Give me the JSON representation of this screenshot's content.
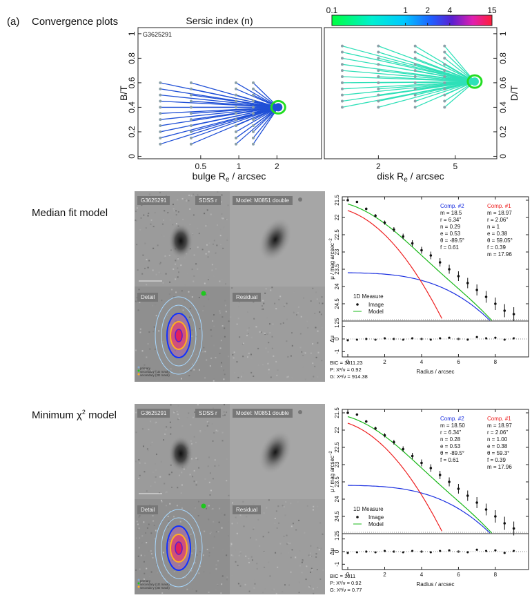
{
  "figure": {
    "panel_letter": "(a)",
    "conv_label": "Convergence plots",
    "median_label": "Median fit model",
    "minchi_label_pre": "Minimum χ",
    "minchi_label_sup": "2",
    "minchi_label_post": " model"
  },
  "colorbar": {
    "title": "Sersic index (n)",
    "ticks": [
      "0.1",
      "1",
      "2",
      "4",
      "15"
    ],
    "tick_values": [
      0.1,
      1,
      2,
      4,
      15
    ]
  },
  "chart_data": [
    {
      "id": "bulge-convergence",
      "type": "line",
      "object": "G3625291",
      "xlabel": "bulge R",
      "xlabel_sub": "e",
      "xlabel_post": " / arcsec",
      "ylabel": "B/T",
      "xscale": "log",
      "xlim": [
        0.16,
        4.5
      ],
      "ylim": [
        -0.02,
        1.05
      ],
      "x_ticks": [
        "0.5",
        "1",
        "2"
      ],
      "x_tick_values": [
        0.5,
        1,
        2
      ],
      "y_ticks": [
        "0",
        "0.2",
        "0.4",
        "0.6",
        "0.8",
        "1"
      ],
      "y_tick_values": [
        0,
        0.2,
        0.4,
        0.6,
        0.8,
        1
      ],
      "start_x": [
        0.24,
        0.42,
        0.95,
        1.3
      ],
      "start_y": [
        0.1,
        0.15,
        0.2,
        0.25,
        0.3,
        0.35,
        0.4,
        0.45,
        0.5,
        0.55,
        0.6
      ],
      "converged": {
        "x": 2.05,
        "y": 0.4
      },
      "line_color": "#1f4fd6"
    },
    {
      "id": "disk-convergence",
      "type": "line",
      "xlabel": "disk R",
      "xlabel_sub": "e",
      "xlabel_post": " / arcsec",
      "ylabel": "D/T",
      "xscale": "log",
      "xlim": [
        1.05,
        8.2
      ],
      "ylim": [
        -0.02,
        1.05
      ],
      "x_ticks": [
        "2",
        "5"
      ],
      "x_tick_values": [
        2,
        5
      ],
      "y_ticks": [
        "0",
        "0.2",
        "0.4",
        "0.6",
        "0.8",
        "1"
      ],
      "y_tick_values": [
        0,
        0.2,
        0.4,
        0.6,
        0.8,
        1
      ],
      "start_x": [
        1.3,
        2.0,
        3.1,
        4.4
      ],
      "start_y": [
        0.4,
        0.45,
        0.5,
        0.55,
        0.6,
        0.65,
        0.7,
        0.75,
        0.8,
        0.85,
        0.9
      ],
      "converged": {
        "x": 6.3,
        "y": 0.61
      },
      "line_color": "#2fe0b8"
    }
  ],
  "fit_rows": [
    {
      "id": "median",
      "tags": {
        "object": "G3625291",
        "band": "SDSS r",
        "model": "Model: M0851 double",
        "detail": "Detail",
        "residual": "Residual"
      },
      "legend_small": [
        "primary",
        "secondary (1D mask)",
        "secondary (2D mask)"
      ],
      "profile": {
        "ylabel": "μ / mag arcsec",
        "ylabel_sup": "−2",
        "resid_label": "Δμ",
        "xlabel": "Radius / arcsec",
        "y_ticks": [
          "21.5",
          "22",
          "22.5",
          "23",
          "23.5",
          "24",
          "24.5",
          "25"
        ],
        "y_tick_values": [
          21.5,
          22,
          22.5,
          23,
          23.5,
          24,
          24.5,
          25
        ],
        "ylim": [
          21.4,
          25.0
        ],
        "resid_ticks": [
          "1",
          "0",
          "-1"
        ],
        "resid_tick_values": [
          1,
          0,
          -1
        ],
        "x_ticks": [
          "0",
          "2",
          "4",
          "6",
          "8"
        ],
        "x_tick_values": [
          0,
          2,
          4,
          6,
          8
        ],
        "xlim": [
          -0.3,
          9.8
        ],
        "legend_title": "1D Measure",
        "legend_image": "Image",
        "legend_model": "Model",
        "comp2": {
          "title": "Comp. #2",
          "lines": [
            "m = 18.5",
            "r = 6.34\"",
            "n = 0.29",
            "e = 0.53",
            "θ = -89.5°",
            "f = 0.61"
          ]
        },
        "comp1": {
          "title": "Comp. #1",
          "lines": [
            "m = 18.97",
            "r = 2.06\"",
            "n = 1",
            "e = 0.38",
            "θ = 59.05°",
            "f = 0.39",
            "m = 17.96"
          ]
        },
        "image_r": [
          0,
          0.5,
          1,
          1.5,
          2,
          2.5,
          3,
          3.5,
          4,
          4.5,
          5,
          5.5,
          6,
          6.5,
          7,
          7.5,
          8,
          8.5,
          9
        ],
        "image_mu": [
          21.5,
          21.55,
          21.75,
          21.95,
          22.15,
          22.35,
          22.55,
          22.75,
          22.95,
          23.1,
          23.3,
          23.5,
          23.7,
          23.9,
          24.1,
          24.3,
          24.5,
          24.7,
          24.8
        ],
        "resid_values": [
          -0.1,
          -0.05,
          0,
          -0.05,
          0.05,
          0,
          -0.05,
          0.05,
          0,
          -0.05,
          0.05,
          0.1,
          0,
          -0.05,
          0.15,
          0.05,
          0.1,
          -0.05,
          0.05
        ]
      },
      "stats": [
        "BIC = 1011.23",
        "P: X²/ν = 0.92",
        "G: X²/ν = 914.38"
      ]
    },
    {
      "id": "minchi",
      "tags": {
        "object": "G3625291",
        "band": "SDSS r",
        "model": "Model: M0851 double",
        "detail": "Detail",
        "residual": "Residual"
      },
      "legend_small": [
        "primary",
        "secondary (1D mask)",
        "secondary (2D mask)"
      ],
      "profile": {
        "ylabel": "μ / mag arcsec",
        "ylabel_sup": "−2",
        "resid_label": "Δμ",
        "xlabel": "Radius / arcsec",
        "y_ticks": [
          "21.5",
          "22",
          "22.5",
          "23",
          "23.5",
          "24",
          "24.5",
          "25"
        ],
        "y_tick_values": [
          21.5,
          22,
          22.5,
          23,
          23.5,
          24,
          24.5,
          25
        ],
        "ylim": [
          21.4,
          25.0
        ],
        "resid_ticks": [
          "1",
          "0",
          "-1"
        ],
        "resid_tick_values": [
          1,
          0,
          -1
        ],
        "x_ticks": [
          "0",
          "2",
          "4",
          "6",
          "8"
        ],
        "x_tick_values": [
          0,
          2,
          4,
          6,
          8
        ],
        "xlim": [
          -0.3,
          9.8
        ],
        "legend_title": "1D Measure",
        "legend_image": "Image",
        "legend_model": "Model",
        "comp2": {
          "title": "Comp. #2",
          "lines": [
            "m = 18.50",
            "r = 6.34\"",
            "n = 0.28",
            "e = 0.53",
            "θ = -89.5°",
            "f = 0.61"
          ]
        },
        "comp1": {
          "title": "Comp. #1",
          "lines": [
            "m = 18.97",
            "r = 2.06\"",
            "n = 1.00",
            "e = 0.38",
            "θ = 59.3°",
            "f = 0.39",
            "m = 17.96"
          ]
        },
        "image_r": [
          0,
          0.5,
          1,
          1.5,
          2,
          2.5,
          3,
          3.5,
          4,
          4.5,
          5,
          5.5,
          6,
          6.5,
          7,
          7.5,
          8,
          8.5,
          9
        ],
        "image_mu": [
          21.5,
          21.55,
          21.75,
          21.95,
          22.15,
          22.35,
          22.55,
          22.75,
          22.95,
          23.1,
          23.3,
          23.5,
          23.7,
          23.9,
          24.1,
          24.3,
          24.5,
          24.7,
          24.85
        ],
        "resid_values": [
          -0.1,
          -0.05,
          0,
          -0.05,
          0.05,
          0,
          -0.05,
          0.05,
          0,
          -0.05,
          0.05,
          0.1,
          0,
          -0.05,
          0.15,
          0.05,
          0.1,
          -0.1,
          0.05
        ]
      },
      "stats": [
        "BIC = 1011",
        "P: X²/ν = 0.92",
        "G: X²/ν = 0.77"
      ]
    }
  ]
}
